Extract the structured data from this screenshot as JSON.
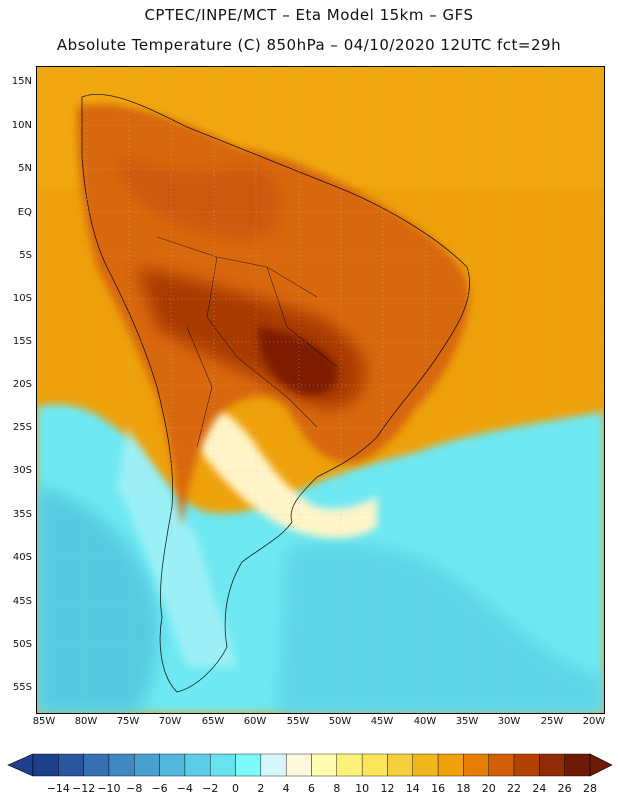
{
  "header": {
    "line1": "CPTEC/INPE/MCT –  Eta Model 15km – GFS",
    "line2": "Absolute Temperature (C) 850hPa – 04/10/2020 12UTC fct=29h"
  },
  "map": {
    "lat_labels": [
      "15N",
      "10N",
      "5N",
      "EQ",
      "5S",
      "10S",
      "15S",
      "20S",
      "25S",
      "30S",
      "35S",
      "40S",
      "45S",
      "50S",
      "55S"
    ],
    "lon_labels": [
      "85W",
      "80W",
      "75W",
      "70W",
      "65W",
      "60W",
      "55W",
      "50W",
      "45W",
      "40W",
      "35W",
      "30W",
      "25W",
      "20W"
    ]
  },
  "colorbar": {
    "labels": [
      "-14",
      "-12",
      "-10",
      "-8",
      "-6",
      "-4",
      "-2",
      "0",
      "2",
      "4",
      "6",
      "8",
      "10",
      "12",
      "14",
      "16",
      "18",
      "20",
      "22",
      "24",
      "26",
      "28"
    ],
    "colors": [
      "#1d3f8c",
      "#2a56a0",
      "#3570b2",
      "#3f88c1",
      "#49a1cf",
      "#52b8dc",
      "#5ccde6",
      "#66e3ef",
      "#7cfbfb",
      "#d6f6fb",
      "#fff8dd",
      "#fffbb0",
      "#fff27a",
      "#fbe55a",
      "#f6cf3c",
      "#f1b61c",
      "#eea10b",
      "#e57e06",
      "#d25e05",
      "#b34104",
      "#8f2b05",
      "#6f1a06"
    ]
  }
}
